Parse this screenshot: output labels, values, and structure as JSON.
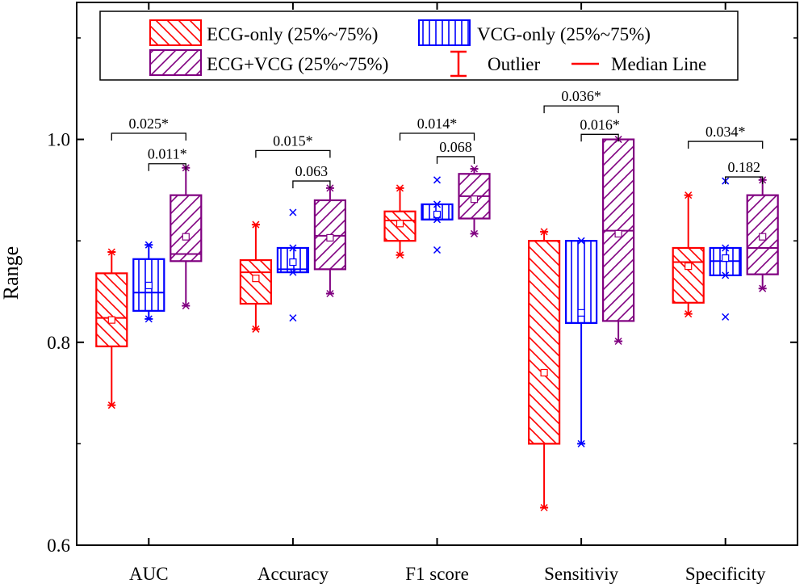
{
  "chart_data": {
    "type": "box",
    "title": "",
    "xlabel": "",
    "ylabel": "Range",
    "ylim": [
      0.6,
      1.135
    ],
    "yticks": [
      {
        "value": 0.6,
        "label": "0.6"
      },
      {
        "value": 0.8,
        "label": "0.8"
      },
      {
        "value": 1.0,
        "label": "1.0"
      }
    ],
    "categories": [
      "AUC",
      "Accuracy",
      "F1 score",
      "Sensitiviy",
      "Specificity"
    ],
    "series": [
      {
        "name": "ECG-only",
        "legend_label": "ECG-only (25%~75%)",
        "color": "#ff0000",
        "hatch": "backslash",
        "boxes": [
          {
            "q1": 0.796,
            "q3": 0.868,
            "median": 0.824,
            "mean": 0.822,
            "whisker_low": 0.738,
            "whisker_high": 0.889,
            "outliers": []
          },
          {
            "q1": 0.838,
            "q3": 0.881,
            "median": 0.869,
            "mean": 0.863,
            "whisker_low": 0.813,
            "whisker_high": 0.916,
            "outliers": []
          },
          {
            "q1": 0.9,
            "q3": 0.929,
            "median": 0.92,
            "mean": 0.917,
            "whisker_low": 0.886,
            "whisker_high": 0.952,
            "outliers": []
          },
          {
            "q1": 0.7,
            "q3": 0.9,
            "median": 0.9,
            "mean": 0.77,
            "whisker_low": 0.637,
            "whisker_high": 0.909,
            "outliers": []
          },
          {
            "q1": 0.839,
            "q3": 0.893,
            "median": 0.879,
            "mean": 0.875,
            "whisker_low": 0.828,
            "whisker_high": 0.945,
            "outliers": []
          }
        ]
      },
      {
        "name": "VCG-only",
        "legend_label": "VCG-only (25%~75%)",
        "color": "#0000ff",
        "hatch": "vertical",
        "boxes": [
          {
            "q1": 0.831,
            "q3": 0.882,
            "median": 0.849,
            "mean": 0.856,
            "whisker_low": 0.823,
            "whisker_high": 0.896,
            "outliers": []
          },
          {
            "q1": 0.869,
            "q3": 0.893,
            "median": 0.872,
            "mean": 0.879,
            "whisker_low": 0.869,
            "whisker_high": 0.893,
            "outliers": [
              0.928,
              0.824
            ]
          },
          {
            "q1": 0.921,
            "q3": 0.936,
            "median": 0.921,
            "mean": 0.926,
            "whisker_low": 0.921,
            "whisker_high": 0.936,
            "outliers": [
              0.96,
              0.891
            ]
          },
          {
            "q1": 0.819,
            "q3": 0.9,
            "median": 0.819,
            "mean": 0.829,
            "whisker_low": 0.7,
            "whisker_high": 0.9,
            "outliers": []
          },
          {
            "q1": 0.866,
            "q3": 0.893,
            "median": 0.88,
            "mean": 0.883,
            "whisker_low": 0.866,
            "whisker_high": 0.893,
            "outliers": [
              0.959,
              0.825
            ]
          }
        ]
      },
      {
        "name": "ECG+VCG",
        "legend_label": "ECG+VCG (25%~75%)",
        "color": "#800080",
        "hatch": "slash",
        "boxes": [
          {
            "q1": 0.88,
            "q3": 0.945,
            "median": 0.887,
            "mean": 0.904,
            "whisker_low": 0.836,
            "whisker_high": 0.972,
            "outliers": []
          },
          {
            "q1": 0.872,
            "q3": 0.94,
            "median": 0.905,
            "mean": 0.903,
            "whisker_low": 0.848,
            "whisker_high": 0.952,
            "outliers": []
          },
          {
            "q1": 0.922,
            "q3": 0.966,
            "median": 0.944,
            "mean": 0.941,
            "whisker_low": 0.907,
            "whisker_high": 0.971,
            "outliers": []
          },
          {
            "q1": 0.821,
            "q3": 1.0,
            "median": 0.91,
            "mean": 0.907,
            "whisker_low": 0.801,
            "whisker_high": 1.0,
            "outliers": []
          },
          {
            "q1": 0.867,
            "q3": 0.945,
            "median": 0.893,
            "mean": 0.904,
            "whisker_low": 0.853,
            "whisker_high": 0.96,
            "outliers": []
          }
        ]
      }
    ],
    "significance": [
      {
        "category": 0,
        "from": "ECG-only",
        "to": "ECG+VCG",
        "label": "0.025*",
        "level": 1.006
      },
      {
        "category": 0,
        "from": "VCG-only",
        "to": "ECG+VCG",
        "label": "0.011*",
        "level": 0.976
      },
      {
        "category": 1,
        "from": "ECG-only",
        "to": "ECG+VCG",
        "label": "0.015*",
        "level": 0.989
      },
      {
        "category": 1,
        "from": "VCG-only",
        "to": "ECG+VCG",
        "label": "0.063",
        "level": 0.959
      },
      {
        "category": 2,
        "from": "ECG-only",
        "to": "ECG+VCG",
        "label": "0.014*",
        "level": 1.006
      },
      {
        "category": 2,
        "from": "VCG-only",
        "to": "ECG+VCG",
        "label": "0.068",
        "level": 0.983
      },
      {
        "category": 3,
        "from": "ECG-only",
        "to": "ECG+VCG",
        "label": "0.036*",
        "level": 1.033
      },
      {
        "category": 3,
        "from": "VCG-only",
        "to": "ECG+VCG",
        "label": "0.016*",
        "level": 1.005
      },
      {
        "category": 4,
        "from": "ECG-only",
        "to": "ECG+VCG",
        "label": "0.034*",
        "level": 0.998
      },
      {
        "category": 4,
        "from": "VCG-only",
        "to": "ECG+VCG",
        "label": "0.182",
        "level": 0.963
      }
    ],
    "legend": {
      "placement": "top",
      "items": [
        {
          "kind": "box",
          "series": "ECG-only",
          "label": "ECG-only (25%~75%)"
        },
        {
          "kind": "box",
          "series": "VCG-only",
          "label": "VCG-only (25%~75%)"
        },
        {
          "kind": "box",
          "series": "ECG+VCG",
          "label": "ECG+VCG (25%~75%)"
        },
        {
          "kind": "outlier",
          "label": "Outlier",
          "color": "#ff0000"
        },
        {
          "kind": "median",
          "label": "Median Line",
          "color": "#ff0000"
        }
      ]
    },
    "grid": false
  }
}
